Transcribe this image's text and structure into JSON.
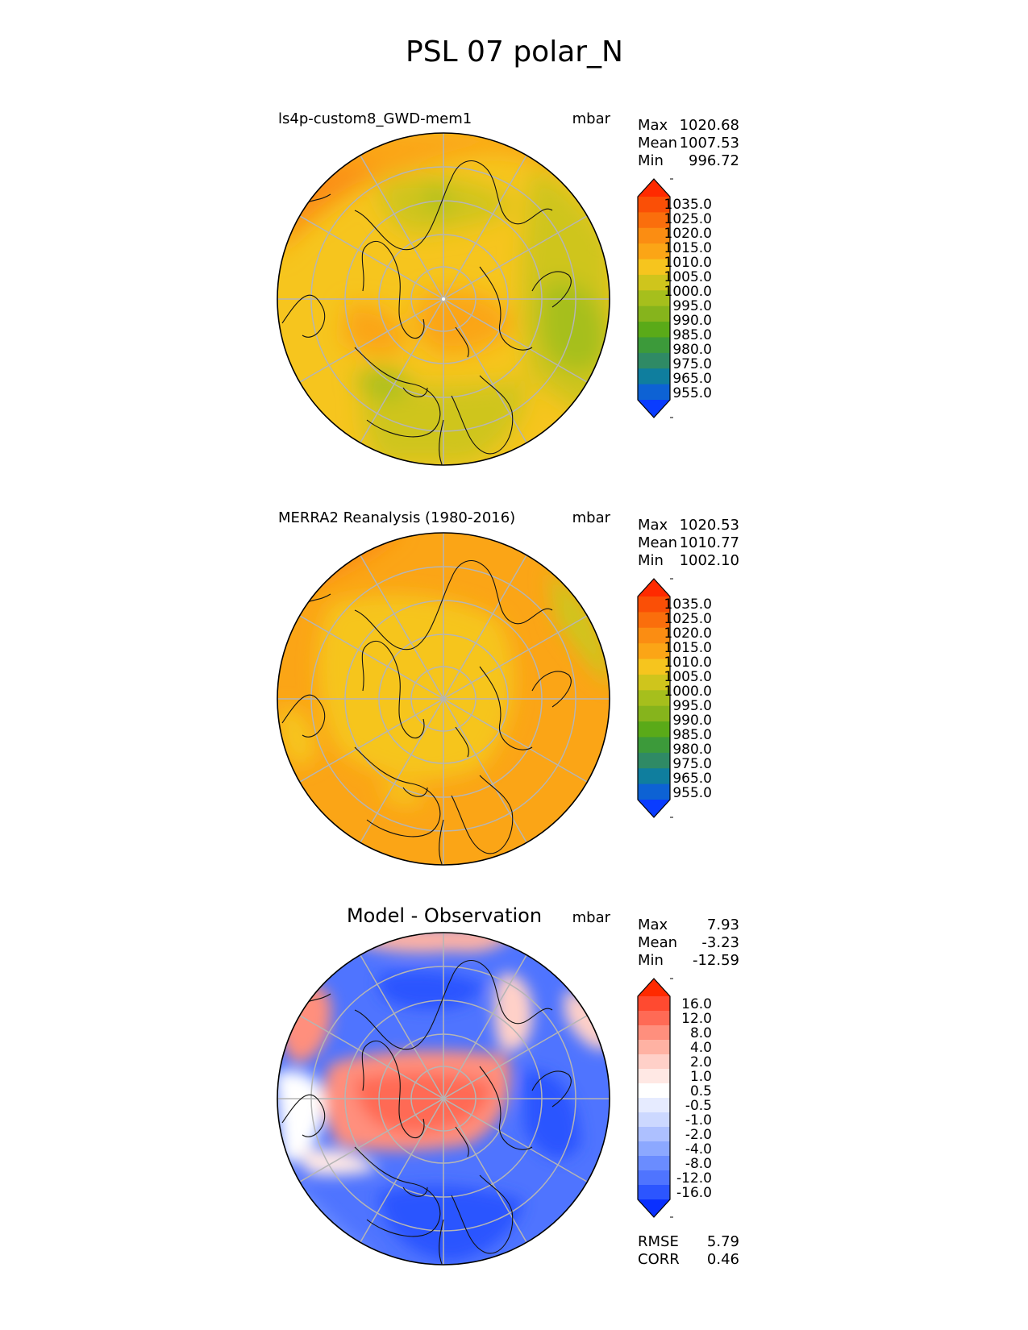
{
  "figure": {
    "title": "PSL 07 polar_N"
  },
  "colors": {
    "abs_levels": [
      "#0a3cff",
      "#0d62d4",
      "#0f7e9e",
      "#2f8a65",
      "#3c9a3a",
      "#5aaa18",
      "#86b41c",
      "#a6bf1c",
      "#cfc51c",
      "#f6c51e",
      "#fba516",
      "#fb8d12",
      "#fa6e0c",
      "#fa4f06",
      "#ff2a00"
    ],
    "diff_levels": [
      "#0a30ff",
      "#2c55ff",
      "#4f74ff",
      "#6a8cff",
      "#8ca8ff",
      "#adc0ff",
      "#ccd8ff",
      "#e6ebff",
      "#ffffff",
      "#ffe8e4",
      "#ffd0c8",
      "#ffb2a3",
      "#ff8f7d",
      "#ff6a55",
      "#ff4a30",
      "#ff2a00"
    ],
    "coast": "#111111",
    "grid": "#b5b5b5"
  },
  "panels": [
    {
      "id": "test",
      "name": "ls4p-custom8_GWD-mem1",
      "units": "mbar",
      "stats": [
        {
          "label": "Max",
          "value": "1020.68"
        },
        {
          "label": "Mean",
          "value": "1007.53"
        },
        {
          "label": "Min",
          "value": "996.72"
        }
      ],
      "colorbar_ticks": [
        "1035.0",
        "1025.0",
        "1020.0",
        "1015.0",
        "1010.0",
        "1005.0",
        "1000.0",
        "995.0",
        "990.0",
        "985.0",
        "980.0",
        "975.0",
        "965.0",
        "955.0"
      ]
    },
    {
      "id": "ref",
      "name": "MERRA2 Reanalysis (1980-2016)",
      "units": "mbar",
      "stats": [
        {
          "label": "Max",
          "value": "1020.53"
        },
        {
          "label": "Mean",
          "value": "1010.77"
        },
        {
          "label": "Min",
          "value": "1002.10"
        }
      ],
      "colorbar_ticks": [
        "1035.0",
        "1025.0",
        "1020.0",
        "1015.0",
        "1010.0",
        "1005.0",
        "1000.0",
        "995.0",
        "990.0",
        "985.0",
        "980.0",
        "975.0",
        "965.0",
        "955.0"
      ]
    },
    {
      "id": "diff",
      "name": "Model - Observation",
      "units": "mbar",
      "stats": [
        {
          "label": "Max",
          "value": "7.93"
        },
        {
          "label": "Mean",
          "value": "-3.23"
        },
        {
          "label": "Min",
          "value": "-12.59"
        }
      ],
      "colorbar_ticks": [
        "16.0",
        "12.0",
        "8.0",
        "4.0",
        "2.0",
        "1.0",
        "0.5",
        "-0.5",
        "-1.0",
        "-2.0",
        "-4.0",
        "-8.0",
        "-12.0",
        "-16.0"
      ],
      "metrics": [
        {
          "label": "RMSE",
          "value": "5.79"
        },
        {
          "label": "CORR",
          "value": "0.46"
        }
      ]
    }
  ],
  "chart_data": {
    "type": "heatmap",
    "title": "PSL 07 polar_N",
    "projection": "north polar stereographic",
    "panels": [
      {
        "name": "ls4p-custom8_GWD-mem1",
        "units": "mbar",
        "max": 1020.68,
        "mean": 1007.53,
        "min": 996.72,
        "levels": [
          955,
          965,
          975,
          980,
          985,
          990,
          995,
          1000,
          1005,
          1010,
          1015,
          1020,
          1025,
          1035
        ]
      },
      {
        "name": "MERRA2 Reanalysis (1980-2016)",
        "units": "mbar",
        "max": 1020.53,
        "mean": 1010.77,
        "min": 1002.1,
        "levels": [
          955,
          965,
          975,
          980,
          985,
          990,
          995,
          1000,
          1005,
          1010,
          1015,
          1020,
          1025,
          1035
        ]
      },
      {
        "name": "Model - Observation",
        "units": "mbar",
        "max": 7.93,
        "mean": -3.23,
        "min": -12.59,
        "levels": [
          -16,
          -12,
          -8,
          -4,
          -2,
          -1,
          -0.5,
          0.5,
          1,
          2,
          4,
          8,
          12,
          16
        ],
        "rmse": 5.79,
        "corr": 0.46
      }
    ]
  }
}
